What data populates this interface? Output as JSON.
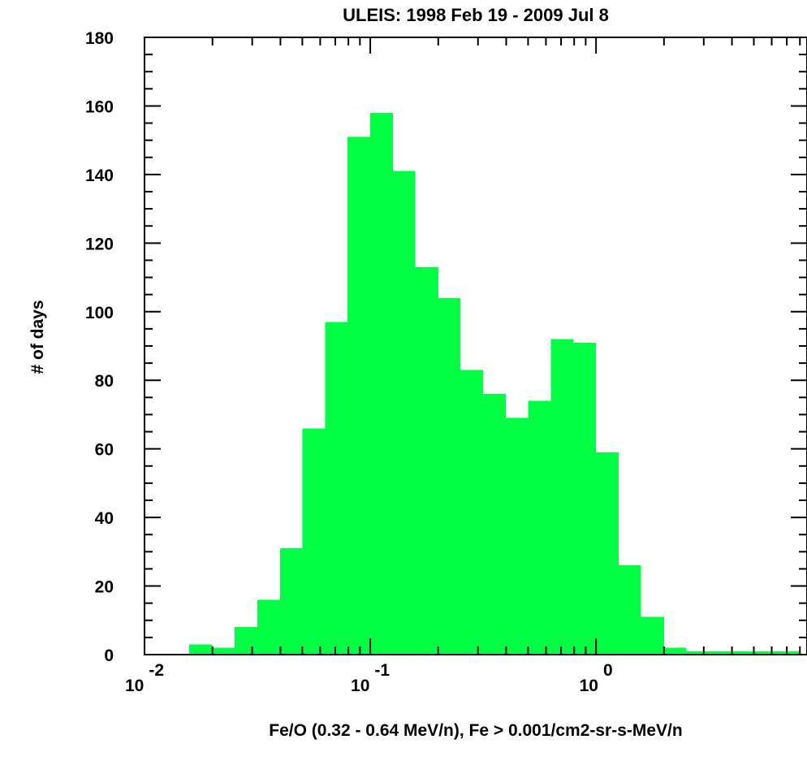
{
  "chart_data": {
    "type": "bar",
    "title": "ULEIS: 1998 Feb 19 - 2009 Jul 8",
    "xlabel": "Fe/O (0.32 - 0.64 MeV/n), Fe > 0.001/cm2-sr-s-MeV/n",
    "ylabel": "# of days",
    "x_scale": "log",
    "xlim": [
      0.01,
      8.6
    ],
    "ylim": [
      0,
      180
    ],
    "y_ticks": [
      0,
      20,
      40,
      60,
      80,
      100,
      120,
      140,
      160,
      180
    ],
    "x_ticks": [
      {
        "value": 0.01,
        "base": "10",
        "exp": "-2"
      },
      {
        "value": 0.1,
        "base": "10",
        "exp": "-1"
      },
      {
        "value": 1,
        "base": "10",
        "exp": "0"
      }
    ],
    "bar_color": "#00ff44",
    "bin_edges": [
      0.0158,
      0.02,
      0.0251,
      0.0316,
      0.0398,
      0.0501,
      0.0631,
      0.0794,
      0.1,
      0.126,
      0.158,
      0.2,
      0.251,
      0.316,
      0.398,
      0.501,
      0.631,
      0.794,
      1.0,
      1.26,
      1.58,
      2.0,
      2.51,
      3.16,
      3.98,
      5.01,
      6.31,
      7.94
    ],
    "values": [
      3,
      2,
      8,
      16,
      31,
      66,
      97,
      151,
      158,
      141,
      113,
      104,
      83,
      76,
      69,
      74,
      92,
      91,
      59,
      26,
      11,
      2,
      1,
      1,
      1,
      1,
      1
    ]
  }
}
